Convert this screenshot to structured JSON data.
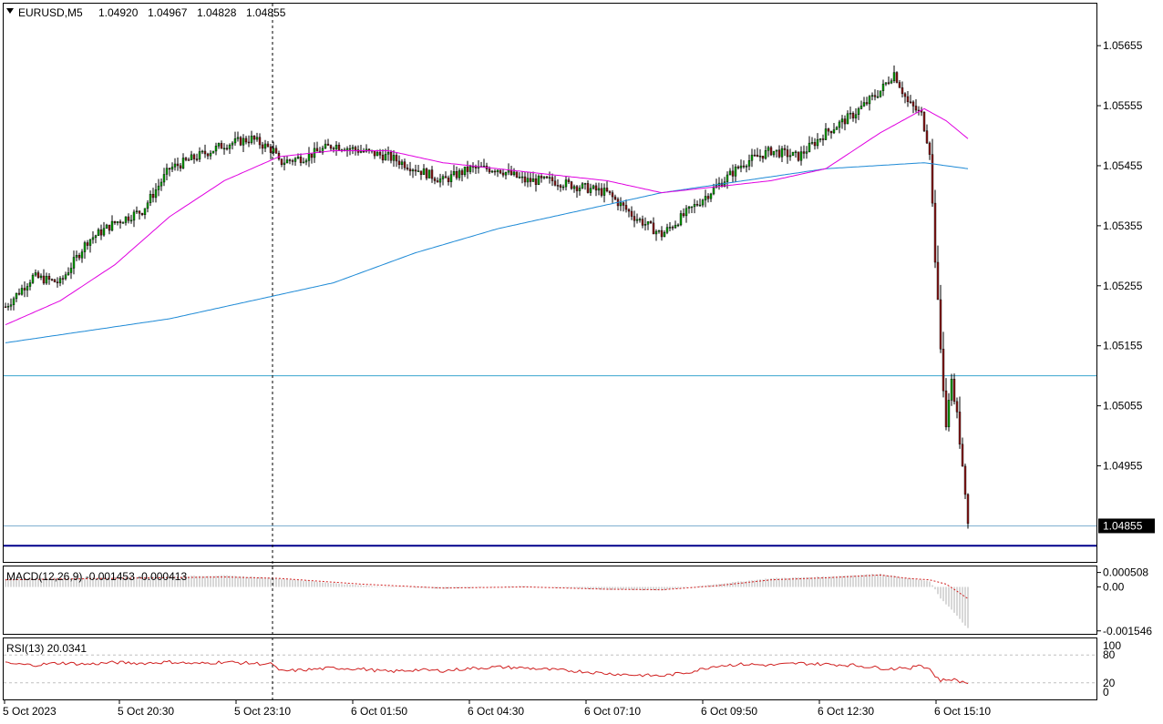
{
  "header": {
    "symbol": "EURUSD,M5",
    "open": "1.04920",
    "high": "1.04967",
    "low": "1.04828",
    "close": "1.04855"
  },
  "colors": {
    "background": "#ffffff",
    "candle_up_body": "#00a000",
    "candle_down_body": "#8b1a1a",
    "wick": "#000000",
    "ma_fast": "#e000e0",
    "ma_slow": "#1e8ad6",
    "level_line": "#3aa6cf",
    "support_line": "#00008b",
    "macd_hist": "#b0b0b0",
    "macd_signal": "#d02020",
    "rsi_line": "#d02020",
    "price_tag_bg": "#000000",
    "price_tag_text": "#ffffff"
  },
  "chart_data": [
    {
      "type": "candlestick",
      "symbol": "EURUSD",
      "timeframe": "M5",
      "y_ticks": [
        "1.05655",
        "1.05555",
        "1.05455",
        "1.05355",
        "1.05255",
        "1.05155",
        "1.05055",
        "1.04955"
      ],
      "ylim": [
        1.04795,
        1.05725
      ],
      "current_price": "1.04855",
      "horizontal_levels": [
        1.05105,
        1.04822
      ],
      "x_ticks": [
        "5 Oct 2023",
        "5 Oct 20:30",
        "5 Oct 23:10",
        "6 Oct 01:50",
        "6 Oct 04:30",
        "6 Oct 07:10",
        "6 Oct 09:50",
        "6 Oct 12:30",
        "6 Oct 15:10"
      ],
      "close_path": [
        [
          0,
          1.0522
        ],
        [
          10,
          1.0527
        ],
        [
          20,
          1.0526
        ],
        [
          30,
          1.0533
        ],
        [
          40,
          1.0536
        ],
        [
          50,
          1.0538
        ],
        [
          60,
          1.0545
        ],
        [
          70,
          1.0547
        ],
        [
          80,
          1.0549
        ],
        [
          90,
          1.055
        ],
        [
          98,
          1.0548
        ],
        [
          100,
          1.0546
        ],
        [
          110,
          1.0547
        ],
        [
          120,
          1.0549
        ],
        [
          130,
          1.0548
        ],
        [
          140,
          1.0547
        ],
        [
          150,
          1.0545
        ],
        [
          160,
          1.0543
        ],
        [
          170,
          1.0545
        ],
        [
          180,
          1.0545
        ],
        [
          190,
          1.0543
        ],
        [
          200,
          1.0543
        ],
        [
          210,
          1.0542
        ],
        [
          220,
          1.0541
        ],
        [
          230,
          1.0537
        ],
        [
          240,
          1.0534
        ],
        [
          250,
          1.0538
        ],
        [
          260,
          1.0542
        ],
        [
          270,
          1.0546
        ],
        [
          280,
          1.0548
        ],
        [
          290,
          1.0547
        ],
        [
          300,
          1.0551
        ],
        [
          310,
          1.0554
        ],
        [
          320,
          1.0558
        ],
        [
          325,
          1.0561
        ],
        [
          330,
          1.0556
        ],
        [
          335,
          1.0554
        ],
        [
          338,
          1.0548
        ],
        [
          340,
          1.053
        ],
        [
          342,
          1.0515
        ],
        [
          344,
          1.0502
        ],
        [
          346,
          1.051
        ],
        [
          348,
          1.0504
        ],
        [
          350,
          1.0495
        ],
        [
          352,
          1.04855
        ]
      ],
      "ma_fast_path": [
        [
          0,
          1.0519
        ],
        [
          20,
          1.0523
        ],
        [
          40,
          1.0529
        ],
        [
          60,
          1.0537
        ],
        [
          80,
          1.0543
        ],
        [
          100,
          1.0547
        ],
        [
          120,
          1.0548
        ],
        [
          140,
          1.0548
        ],
        [
          160,
          1.0546
        ],
        [
          180,
          1.0545
        ],
        [
          200,
          1.0544
        ],
        [
          220,
          1.0543
        ],
        [
          240,
          1.0541
        ],
        [
          260,
          1.0542
        ],
        [
          280,
          1.0543
        ],
        [
          300,
          1.0545
        ],
        [
          320,
          1.0551
        ],
        [
          336,
          1.0555
        ],
        [
          344,
          1.0553
        ],
        [
          352,
          1.055
        ]
      ],
      "ma_slow_path": [
        [
          0,
          1.0516
        ],
        [
          30,
          1.0518
        ],
        [
          60,
          1.052
        ],
        [
          90,
          1.0523
        ],
        [
          120,
          1.0526
        ],
        [
          150,
          1.0531
        ],
        [
          180,
          1.0535
        ],
        [
          210,
          1.0538
        ],
        [
          240,
          1.0541
        ],
        [
          270,
          1.0543
        ],
        [
          300,
          1.0545
        ],
        [
          336,
          1.0546
        ],
        [
          352,
          1.0545
        ]
      ]
    },
    {
      "type": "bar",
      "name": "MACD(12,26,9)",
      "label": "MACD(12,26,9) -0.001453 -0.000413",
      "y_ticks": [
        "0.000508",
        "0.00",
        "-0.001546"
      ],
      "ylim": [
        -0.00165,
        0.00072
      ],
      "hist_path": [
        [
          0,
          0.0003
        ],
        [
          40,
          0.00034
        ],
        [
          80,
          0.0004
        ],
        [
          100,
          0.0003
        ],
        [
          130,
          5e-05
        ],
        [
          160,
          -6e-05
        ],
        [
          190,
          3e-05
        ],
        [
          220,
          -0.0001
        ],
        [
          240,
          -0.00012
        ],
        [
          260,
          0.0001
        ],
        [
          280,
          0.0003
        ],
        [
          300,
          0.00036
        ],
        [
          320,
          0.00046
        ],
        [
          330,
          0.0003
        ],
        [
          338,
          0.0002
        ],
        [
          342,
          -0.0004
        ],
        [
          346,
          -0.0008
        ],
        [
          350,
          -0.00125
        ],
        [
          352,
          -0.001453
        ]
      ],
      "signal_path": [
        [
          0,
          0.00025
        ],
        [
          40,
          0.0003
        ],
        [
          80,
          0.00035
        ],
        [
          100,
          0.0003
        ],
        [
          130,
          0.0001
        ],
        [
          160,
          -4e-05
        ],
        [
          190,
          0.0
        ],
        [
          220,
          -8e-05
        ],
        [
          240,
          -0.0001
        ],
        [
          260,
          4e-05
        ],
        [
          280,
          0.00025
        ],
        [
          300,
          0.00032
        ],
        [
          320,
          0.00042
        ],
        [
          330,
          0.0003
        ],
        [
          338,
          0.00025
        ],
        [
          344,
          0.0001
        ],
        [
          348,
          -0.00015
        ],
        [
          352,
          -0.000413
        ]
      ]
    },
    {
      "type": "line",
      "name": "RSI(13)",
      "label": "RSI(13) 20.0341",
      "y_ticks": [
        "100",
        "80",
        "20",
        "0"
      ],
      "ylim": [
        0,
        100
      ],
      "levels": [
        80,
        20
      ],
      "rsi_path": [
        [
          0,
          62
        ],
        [
          10,
          58
        ],
        [
          20,
          63
        ],
        [
          30,
          60
        ],
        [
          40,
          64
        ],
        [
          50,
          62
        ],
        [
          60,
          65
        ],
        [
          70,
          61
        ],
        [
          80,
          65
        ],
        [
          90,
          62
        ],
        [
          98,
          60
        ],
        [
          100,
          45
        ],
        [
          110,
          48
        ],
        [
          120,
          52
        ],
        [
          130,
          50
        ],
        [
          140,
          44
        ],
        [
          150,
          48
        ],
        [
          160,
          46
        ],
        [
          170,
          51
        ],
        [
          180,
          54
        ],
        [
          190,
          52
        ],
        [
          200,
          48
        ],
        [
          210,
          45
        ],
        [
          220,
          40
        ],
        [
          230,
          37
        ],
        [
          240,
          35
        ],
        [
          250,
          43
        ],
        [
          260,
          57
        ],
        [
          270,
          60
        ],
        [
          280,
          58
        ],
        [
          290,
          62
        ],
        [
          300,
          60
        ],
        [
          310,
          58
        ],
        [
          320,
          52
        ],
        [
          325,
          50
        ],
        [
          328,
          55
        ],
        [
          330,
          47
        ],
        [
          334,
          60
        ],
        [
          338,
          50
        ],
        [
          340,
          35
        ],
        [
          342,
          25
        ],
        [
          346,
          28
        ],
        [
          350,
          22
        ],
        [
          352,
          20.0341
        ]
      ]
    }
  ]
}
